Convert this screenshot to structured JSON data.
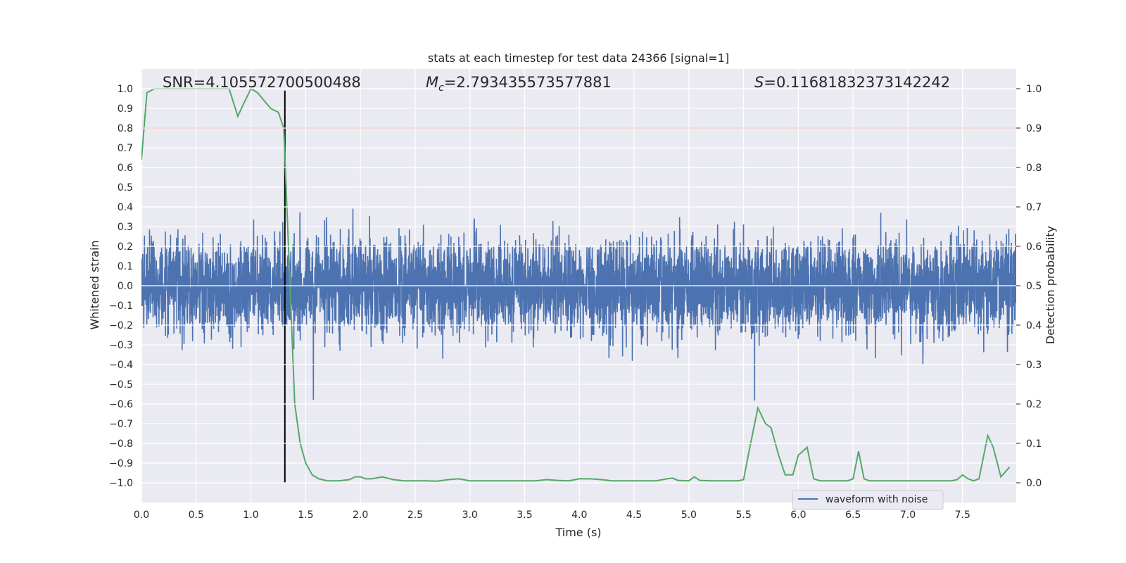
{
  "chart_data": {
    "type": "line",
    "title": "stats at each timestep for test data 24366 [signal=1]",
    "xlabel": "Time (s)",
    "ylabel_left": "Whitened strain",
    "ylabel_right": "Detection probability",
    "xlim": [
      0.0,
      7.99
    ],
    "ylim_left": [
      -1.1,
      1.1
    ],
    "ylim_right": [
      -0.05,
      1.05
    ],
    "x_ticks": [
      "0.0",
      "0.5",
      "1.0",
      "1.5",
      "2.0",
      "2.5",
      "3.0",
      "3.5",
      "4.0",
      "4.5",
      "5.0",
      "5.5",
      "6.0",
      "6.5",
      "7.0",
      "7.5"
    ],
    "y_ticks_left": [
      "1.0",
      "0.9",
      "0.8",
      "0.7",
      "0.6",
      "0.5",
      "0.4",
      "0.3",
      "0.2",
      "0.1",
      "0.0",
      "−0.1",
      "−0.2",
      "−0.3",
      "−0.4",
      "−0.5",
      "−0.6",
      "−0.7",
      "−0.8",
      "−0.9",
      "−1.0"
    ],
    "y_ticks_right": [
      "1.0",
      "0.9",
      "0.8",
      "0.7",
      "0.6",
      "0.5",
      "0.4",
      "0.3",
      "0.2",
      "0.1",
      "0.0"
    ],
    "annotations": {
      "snr": "SNR=4.105572700500488",
      "mc_symbol": "M",
      "mc_sub": "c",
      "mc_value": "=2.793435573577881",
      "s_symbol": "S",
      "s_value": "=0.11681832373142242"
    },
    "threshold": 0.9,
    "marker_time": 1.31,
    "series": [
      {
        "name": "waveform with noise",
        "color": "#4c72b0",
        "type": "noise",
        "base_amplitude": 0.42,
        "seed": 24366
      },
      {
        "name": "detection probability",
        "color": "#55a868",
        "x": [
          0.0,
          0.05,
          0.12,
          0.2,
          0.3,
          0.4,
          0.5,
          0.6,
          0.7,
          0.8,
          0.88,
          0.93,
          1.0,
          1.06,
          1.12,
          1.18,
          1.25,
          1.3,
          1.35,
          1.4,
          1.45,
          1.5,
          1.56,
          1.62,
          1.7,
          1.8,
          1.9,
          1.95,
          2.0,
          2.05,
          2.1,
          2.2,
          2.3,
          2.4,
          2.5,
          2.6,
          2.7,
          2.8,
          2.9,
          3.0,
          3.2,
          3.4,
          3.6,
          3.7,
          3.8,
          3.9,
          4.0,
          4.1,
          4.2,
          4.3,
          4.4,
          4.6,
          4.7,
          4.8,
          4.85,
          4.9,
          5.0,
          5.05,
          5.1,
          5.2,
          5.3,
          5.45,
          5.5,
          5.55,
          5.63,
          5.7,
          5.75,
          5.82,
          5.88,
          5.95,
          6.0,
          6.08,
          6.14,
          6.2,
          6.3,
          6.45,
          6.5,
          6.55,
          6.6,
          6.65,
          6.7,
          6.8,
          6.9,
          7.0,
          7.2,
          7.4,
          7.45,
          7.5,
          7.55,
          7.6,
          7.65,
          7.73,
          7.78,
          7.85,
          7.93
        ],
        "values": [
          0.82,
          0.99,
          1.0,
          1.0,
          1.0,
          1.0,
          1.0,
          1.0,
          1.0,
          1.0,
          0.93,
          0.96,
          1.0,
          0.99,
          0.97,
          0.95,
          0.94,
          0.9,
          0.55,
          0.2,
          0.1,
          0.05,
          0.02,
          0.01,
          0.005,
          0.005,
          0.008,
          0.015,
          0.015,
          0.01,
          0.01,
          0.015,
          0.008,
          0.005,
          0.005,
          0.005,
          0.004,
          0.008,
          0.01,
          0.005,
          0.005,
          0.005,
          0.005,
          0.008,
          0.006,
          0.005,
          0.01,
          0.01,
          0.008,
          0.005,
          0.005,
          0.005,
          0.005,
          0.01,
          0.012,
          0.006,
          0.005,
          0.015,
          0.006,
          0.005,
          0.005,
          0.005,
          0.008,
          0.08,
          0.19,
          0.15,
          0.14,
          0.07,
          0.02,
          0.02,
          0.07,
          0.09,
          0.01,
          0.005,
          0.005,
          0.005,
          0.01,
          0.08,
          0.01,
          0.005,
          0.005,
          0.005,
          0.005,
          0.005,
          0.005,
          0.005,
          0.008,
          0.02,
          0.01,
          0.005,
          0.01,
          0.12,
          0.09,
          0.015,
          0.04
        ]
      }
    ],
    "legend": {
      "label": "waveform with noise",
      "placement": "lower-right"
    }
  }
}
